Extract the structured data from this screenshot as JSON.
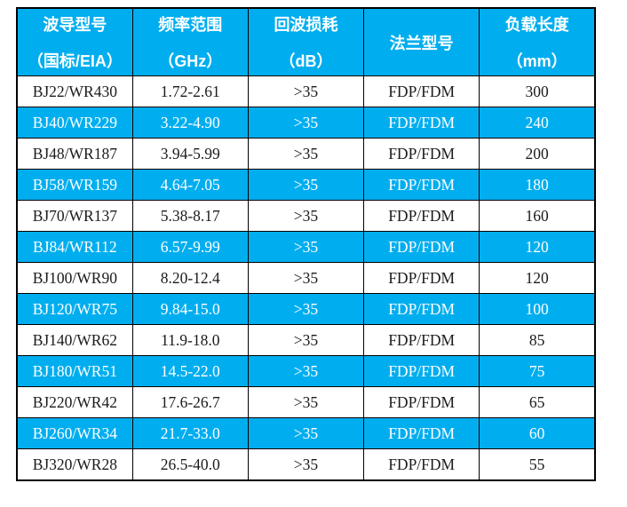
{
  "table": {
    "accent_color": "#00AEEF",
    "header_text_color": "#FFFFFF",
    "body_text_color": "#1B1B1B",
    "border_color": "#000000",
    "columns": [
      {
        "line1": "波导型号",
        "line2": "（国标/EIA）"
      },
      {
        "line1": "频率范围",
        "line2": "（GHz）"
      },
      {
        "line1": "回波损耗",
        "line2": "（dB）"
      },
      {
        "line1": "法兰型号",
        "line2": ""
      },
      {
        "line1": "负载长度",
        "line2": "（mm）"
      }
    ],
    "rows": [
      {
        "model": "BJ22/WR430",
        "freq": "1.72-2.61",
        "return_loss": ">35",
        "flange": "FDP/FDM",
        "length": "300"
      },
      {
        "model": "BJ40/WR229",
        "freq": "3.22-4.90",
        "return_loss": ">35",
        "flange": "FDP/FDM",
        "length": "240"
      },
      {
        "model": "BJ48/WR187",
        "freq": "3.94-5.99",
        "return_loss": ">35",
        "flange": "FDP/FDM",
        "length": "200"
      },
      {
        "model": "BJ58/WR159",
        "freq": "4.64-7.05",
        "return_loss": ">35",
        "flange": "FDP/FDM",
        "length": "180"
      },
      {
        "model": "BJ70/WR137",
        "freq": "5.38-8.17",
        "return_loss": ">35",
        "flange": "FDP/FDM",
        "length": "160"
      },
      {
        "model": "BJ84/WR112",
        "freq": "6.57-9.99",
        "return_loss": ">35",
        "flange": "FDP/FDM",
        "length": "120"
      },
      {
        "model": "BJ100/WR90",
        "freq": "8.20-12.4",
        "return_loss": ">35",
        "flange": "FDP/FDM",
        "length": "120"
      },
      {
        "model": "BJ120/WR75",
        "freq": "9.84-15.0",
        "return_loss": ">35",
        "flange": "FDP/FDM",
        "length": "100"
      },
      {
        "model": "BJ140/WR62",
        "freq": "11.9-18.0",
        "return_loss": ">35",
        "flange": "FDP/FDM",
        "length": "85"
      },
      {
        "model": "BJ180/WR51",
        "freq": "14.5-22.0",
        "return_loss": ">35",
        "flange": "FDP/FDM",
        "length": "75"
      },
      {
        "model": "BJ220/WR42",
        "freq": "17.6-26.7",
        "return_loss": ">35",
        "flange": "FDP/FDM",
        "length": "65"
      },
      {
        "model": "BJ260/WR34",
        "freq": "21.7-33.0",
        "return_loss": ">35",
        "flange": "FDP/FDM",
        "length": "60"
      },
      {
        "model": "BJ320/WR28",
        "freq": "26.5-40.0",
        "return_loss": ">35",
        "flange": "FDP/FDM",
        "length": "55"
      }
    ]
  }
}
